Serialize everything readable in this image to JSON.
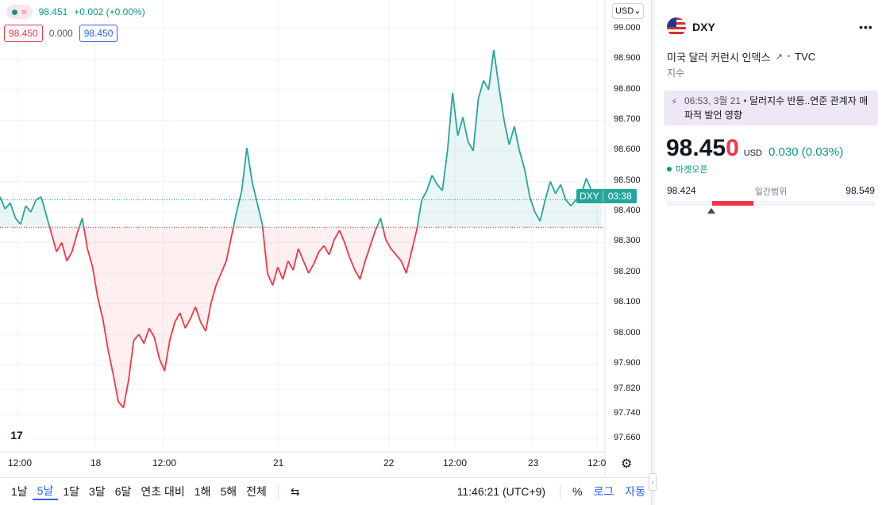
{
  "legend": {
    "price": "98.451",
    "change": "+0.002 (+0.00%)",
    "bid": "98.450",
    "spread": "0.000",
    "ask": "98.450",
    "wave_icon": "≈"
  },
  "currency_selector": "USD",
  "y_axis_labels": [
    "99.000",
    "98.900",
    "98.800",
    "98.700",
    "98.600",
    "98.500",
    "98.400",
    "98.300",
    "98.200",
    "98.100",
    "98.000",
    "97.900",
    "97.820",
    "97.740",
    "97.660"
  ],
  "x_axis_labels": [
    "12:00",
    "18",
    "12:00",
    "21",
    "22",
    "12:00",
    "23",
    "12:0"
  ],
  "price_tag": {
    "symbol": "DXY",
    "countdown": "03:38"
  },
  "bottom_bar": {
    "ranges": [
      "1날",
      "5날",
      "1달",
      "3달",
      "6달",
      "연초 대비",
      "1해",
      "5해",
      "전체"
    ],
    "active_range": "5날",
    "clock": "11:46:21 (UTC+9)",
    "percent": "%",
    "log": "로그",
    "auto": "자동"
  },
  "side": {
    "symbol": "DXY",
    "full_name": "미국 달러 커런시 인덱스",
    "exchange": "TVC",
    "type": "지수",
    "news_time": "06:53, 3월 21",
    "news_text": "달러지수 반등..연준 관계자 매파적 발언 영향",
    "price_main": "98.45",
    "price_last_digit": "0",
    "currency": "USD",
    "change": "0.030 (0.03%)",
    "market_status": "마켓오픈",
    "day_low": "98.424",
    "day_range_label": "일간범위",
    "day_high": "98.549"
  },
  "colors": {
    "up": "#089981",
    "down": "#f23645",
    "accent": "#2962ff",
    "line_up": "#26a69a"
  },
  "chart_data": {
    "type": "area",
    "title": "",
    "baseline": 98.35,
    "ylim": [
      97.62,
      99.04
    ],
    "x_labels": [
      "12:00",
      "18",
      "12:00",
      "21",
      "22",
      "12:00",
      "23",
      "12:0"
    ],
    "y": [
      98.45,
      98.41,
      98.43,
      98.38,
      98.36,
      98.42,
      98.4,
      98.44,
      98.45,
      98.39,
      98.33,
      98.27,
      98.3,
      98.24,
      98.27,
      98.33,
      98.38,
      98.28,
      98.22,
      98.12,
      98.05,
      97.95,
      97.87,
      97.78,
      97.76,
      97.85,
      97.98,
      98.0,
      97.97,
      98.02,
      97.99,
      97.92,
      97.88,
      97.98,
      98.04,
      98.07,
      98.02,
      98.05,
      98.09,
      98.04,
      98.01,
      98.1,
      98.16,
      98.2,
      98.24,
      98.32,
      98.4,
      98.47,
      98.61,
      98.5,
      98.43,
      98.36,
      98.2,
      98.16,
      98.22,
      98.18,
      98.24,
      98.21,
      98.28,
      98.24,
      98.2,
      98.23,
      98.27,
      98.29,
      98.26,
      98.31,
      98.34,
      98.3,
      98.25,
      98.21,
      98.18,
      98.24,
      98.29,
      98.34,
      98.38,
      98.31,
      98.28,
      98.26,
      98.24,
      98.2,
      98.27,
      98.34,
      98.44,
      98.47,
      98.52,
      98.49,
      98.47,
      98.6,
      98.79,
      98.65,
      98.71,
      98.63,
      98.6,
      98.77,
      98.83,
      98.8,
      98.93,
      98.81,
      98.7,
      98.62,
      98.68,
      98.6,
      98.54,
      98.45,
      98.4,
      98.37,
      98.44,
      98.5,
      98.46,
      98.49,
      98.44,
      98.42,
      98.44,
      98.46,
      98.51,
      98.47,
      98.45,
      98.44
    ]
  }
}
